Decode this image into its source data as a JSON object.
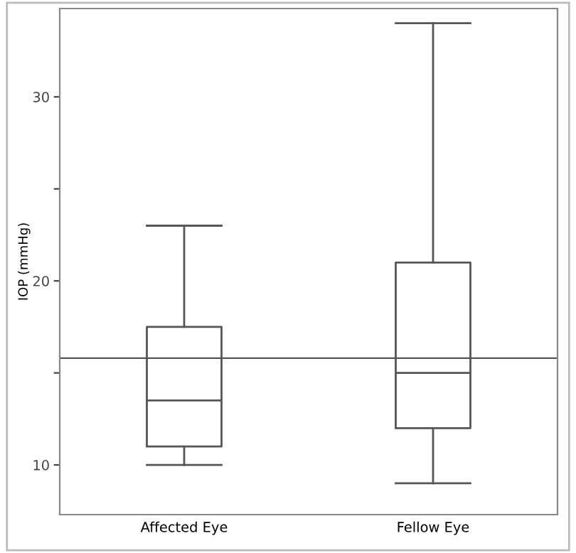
{
  "chart_data": {
    "type": "box",
    "ylabel": "IOP (mmHg)",
    "categories": [
      "Affected Eye",
      "Fellow Eye"
    ],
    "boxes": [
      {
        "low": 10,
        "q1": 11,
        "median": 13.5,
        "q3": 17.5,
        "high": 23
      },
      {
        "low": 9,
        "q1": 12,
        "median": 15,
        "q3": 21,
        "high": 34
      }
    ],
    "color": "#555555",
    "ylim": [
      7.3,
      34.8
    ],
    "yticks": [
      10,
      {
        "value": 15,
        "label": null
      },
      20,
      {
        "value": 25,
        "label": null
      },
      30
    ],
    "ref_lines": [
      {
        "axis": "y",
        "value": 15.8,
        "color": "#555555"
      }
    ],
    "grid": false
  }
}
